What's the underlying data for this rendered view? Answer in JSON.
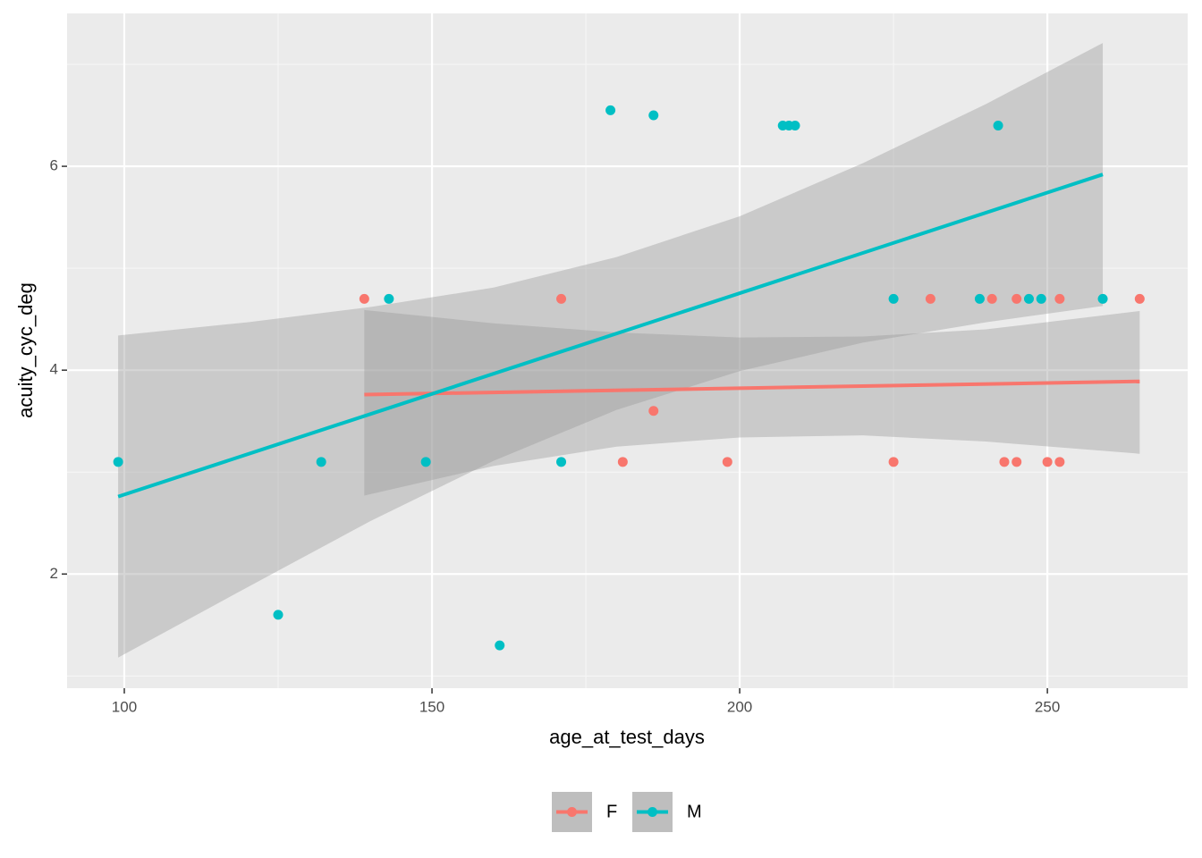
{
  "chart_data": {
    "type": "scatter",
    "x_label": "age_at_test_days",
    "y_label": "acuity_cyc_deg",
    "xlim": [
      90.7,
      272.8
    ],
    "ylim": [
      0.88,
      7.5
    ],
    "xticks": [
      100,
      150,
      200,
      250
    ],
    "yticks": [
      2,
      4,
      6
    ],
    "grid": true,
    "minor_grid": true,
    "legend": "bottom",
    "series": [
      {
        "name": "F",
        "color": "#F8766D",
        "x": [
          139,
          171,
          186,
          181,
          198,
          225,
          231,
          241,
          245,
          252,
          265,
          243,
          245,
          250,
          252
        ],
        "values": [
          4.7,
          4.7,
          3.6,
          3.1,
          3.1,
          3.1,
          4.7,
          4.7,
          4.7,
          4.7,
          4.7,
          3.1,
          3.1,
          3.1,
          3.1
        ],
        "fit_x": [
          139,
          265
        ],
        "fit_values": [
          3.76,
          3.89
        ],
        "band_x": [
          139,
          160,
          180,
          200,
          220,
          240,
          265
        ],
        "band_upper": [
          4.59,
          4.46,
          4.37,
          4.32,
          4.33,
          4.4,
          4.58
        ],
        "band_lower": [
          2.77,
          3.06,
          3.25,
          3.34,
          3.36,
          3.3,
          3.18
        ]
      },
      {
        "name": "M",
        "color": "#00BFC4",
        "x": [
          99,
          125,
          132,
          143,
          149,
          161,
          171,
          179,
          186,
          207,
          208,
          209,
          225,
          239,
          242,
          247,
          249,
          259
        ],
        "values": [
          3.1,
          1.6,
          3.1,
          4.7,
          3.1,
          1.3,
          3.1,
          6.55,
          6.5,
          6.4,
          6.4,
          6.4,
          4.7,
          4.7,
          6.4,
          4.7,
          4.7,
          4.7
        ],
        "fit_x": [
          99,
          259
        ],
        "fit_values": [
          2.76,
          5.92
        ],
        "band_x": [
          99,
          120,
          140,
          160,
          180,
          200,
          220,
          240,
          259
        ],
        "band_upper": [
          4.34,
          4.47,
          4.62,
          4.81,
          5.11,
          5.51,
          6.03,
          6.61,
          7.21
        ],
        "band_lower": [
          1.18,
          1.87,
          2.52,
          3.11,
          3.61,
          3.99,
          4.27,
          4.47,
          4.63
        ]
      }
    ]
  }
}
